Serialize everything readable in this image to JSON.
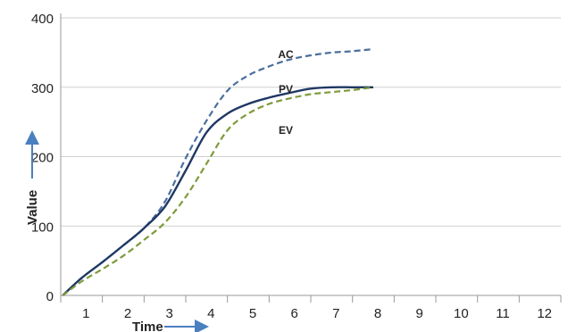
{
  "chart_data": {
    "type": "line",
    "title": "",
    "xlabel": "Time",
    "ylabel": "Value",
    "xlim": [
      0.5,
      12.5
    ],
    "ylim": [
      0,
      400
    ],
    "x_ticks": [
      "1",
      "2",
      "3",
      "4",
      "5",
      "6",
      "7",
      "8",
      "9",
      "10",
      "11",
      "12"
    ],
    "y_ticks": [
      "0",
      "100",
      "200",
      "300",
      "400"
    ],
    "grid": "horizontal",
    "legend": "inline labels",
    "series": [
      {
        "name": "AC",
        "style": "dashed",
        "color": "#4a6f9c",
        "points": [
          [
            0.55,
            0
          ],
          [
            1,
            25
          ],
          [
            1.5,
            48
          ],
          [
            2,
            72
          ],
          [
            2.5,
            97
          ],
          [
            3,
            135
          ],
          [
            3.5,
            198
          ],
          [
            4,
            252
          ],
          [
            4.5,
            295
          ],
          [
            5,
            317
          ],
          [
            5.5,
            330
          ],
          [
            6,
            340
          ],
          [
            6.5,
            346
          ],
          [
            7,
            350
          ],
          [
            7.5,
            352
          ],
          [
            8,
            355
          ]
        ]
      },
      {
        "name": "PV",
        "style": "solid",
        "color": "#1f3864",
        "points": [
          [
            0.55,
            0
          ],
          [
            1,
            25
          ],
          [
            1.5,
            48
          ],
          [
            2,
            72
          ],
          [
            2.5,
            97
          ],
          [
            3,
            128
          ],
          [
            3.5,
            180
          ],
          [
            4,
            235
          ],
          [
            4.5,
            262
          ],
          [
            5,
            276
          ],
          [
            5.5,
            285
          ],
          [
            6,
            292
          ],
          [
            6.5,
            298
          ],
          [
            7,
            300
          ],
          [
            7.5,
            300
          ],
          [
            8,
            300
          ]
        ]
      },
      {
        "name": "EV",
        "style": "dashed",
        "color": "#7f9a3c",
        "points": [
          [
            0.55,
            0
          ],
          [
            1,
            20
          ],
          [
            1.5,
            38
          ],
          [
            2,
            57
          ],
          [
            2.5,
            80
          ],
          [
            3,
            105
          ],
          [
            3.5,
            142
          ],
          [
            4,
            190
          ],
          [
            4.5,
            238
          ],
          [
            5,
            262
          ],
          [
            5.5,
            276
          ],
          [
            6,
            284
          ],
          [
            6.5,
            290
          ],
          [
            7,
            293
          ],
          [
            7.5,
            296
          ],
          [
            8,
            300
          ]
        ]
      }
    ],
    "series_labels": [
      {
        "name": "AC",
        "x": 5.9,
        "y": 342
      },
      {
        "name": "PV",
        "x": 5.9,
        "y": 292
      },
      {
        "name": "EV",
        "x": 5.9,
        "y": 233
      }
    ]
  }
}
